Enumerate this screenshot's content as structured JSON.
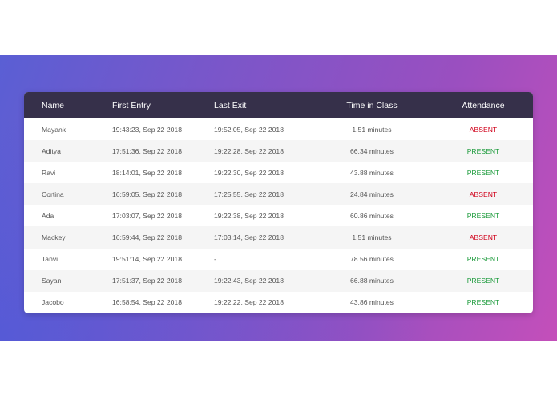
{
  "table": {
    "headers": {
      "name": "Name",
      "first_entry": "First Entry",
      "last_exit": "Last Exit",
      "time_in_class": "Time in Class",
      "attendance": "Attendance"
    },
    "rows": [
      {
        "name": "Mayank",
        "first_entry": "19:43:23, Sep 22 2018",
        "last_exit": "19:52:05, Sep 22 2018",
        "time_in_class": "1.51 minutes",
        "attendance": "ABSENT"
      },
      {
        "name": "Aditya",
        "first_entry": "17:51:36, Sep 22 2018",
        "last_exit": "19:22:28, Sep 22 2018",
        "time_in_class": "66.34 minutes",
        "attendance": "PRESENT"
      },
      {
        "name": "Ravi",
        "first_entry": "18:14:01, Sep 22 2018",
        "last_exit": "19:22:30, Sep 22 2018",
        "time_in_class": "43.88 minutes",
        "attendance": "PRESENT"
      },
      {
        "name": "Cortina",
        "first_entry": "16:59:05, Sep 22 2018",
        "last_exit": "17:25:55, Sep 22 2018",
        "time_in_class": "24.84 minutes",
        "attendance": "ABSENT"
      },
      {
        "name": "Ada",
        "first_entry": "17:03:07, Sep 22 2018",
        "last_exit": "19:22:38, Sep 22 2018",
        "time_in_class": "60.86 minutes",
        "attendance": "PRESENT"
      },
      {
        "name": "Mackey",
        "first_entry": "16:59:44, Sep 22 2018",
        "last_exit": "17:03:14, Sep 22 2018",
        "time_in_class": "1.51 minutes",
        "attendance": "ABSENT"
      },
      {
        "name": "Tanvi",
        "first_entry": "19:51:14, Sep 22 2018",
        "last_exit": "-",
        "time_in_class": "78.56 minutes",
        "attendance": "PRESENT"
      },
      {
        "name": "Sayan",
        "first_entry": "17:51:37, Sep 22 2018",
        "last_exit": "19:22:43, Sep 22 2018",
        "time_in_class": "66.88 minutes",
        "attendance": "PRESENT"
      },
      {
        "name": "Jacobo",
        "first_entry": "16:58:54, Sep 22 2018",
        "last_exit": "19:22:22, Sep 22 2018",
        "time_in_class": "43.86 minutes",
        "attendance": "PRESENT"
      }
    ]
  },
  "colors": {
    "header_bg": "#36304a",
    "absent": "#d0021b",
    "present": "#1a9a3a",
    "band_start": "#5a5fd4",
    "band_end": "#c44fba"
  }
}
